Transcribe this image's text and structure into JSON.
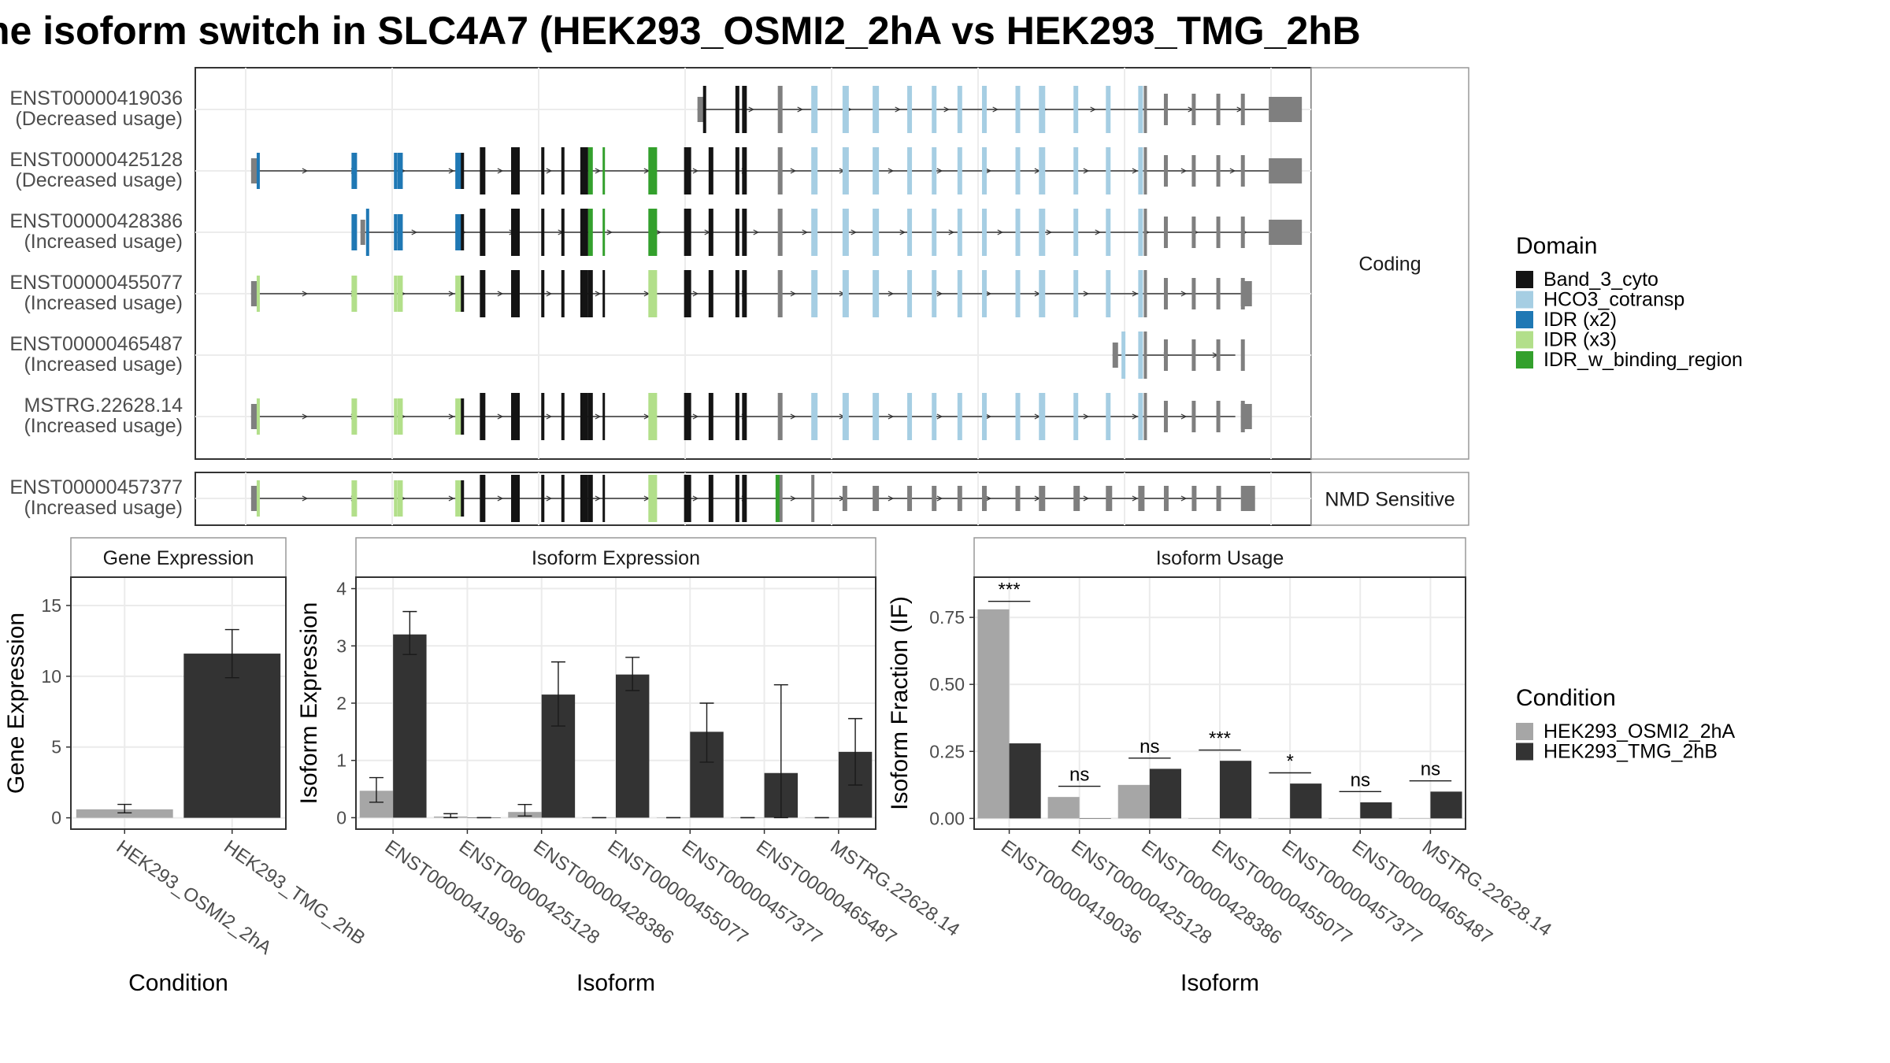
{
  "title": "he isoform switch in SLC4A7 (HEK293_OSMI2_2hA vs HEK293_TMG_2hB",
  "colors": {
    "Band_3_cyto": "#141414",
    "HCO3_cotransp": "#a6cee3",
    "IDR (x2)": "#1f78b4",
    "IDR (x3)": "#b2df8a",
    "IDR_w_binding_region": "#33a02c",
    "utr": "#7f7f7f",
    "line": "#333333",
    "cond_a": "#a6a6a6",
    "cond_b": "#333333"
  },
  "legend_domain": {
    "title": "Domain",
    "items": [
      {
        "label": "Band_3_cyto",
        "color": "#141414"
      },
      {
        "label": "HCO3_cotransp",
        "color": "#a6cee3"
      },
      {
        "label": "IDR (x2)",
        "color": "#1f78b4"
      },
      {
        "label": "IDR (x3)",
        "color": "#b2df8a"
      },
      {
        "label": "IDR_w_binding_region",
        "color": "#33a02c"
      }
    ]
  },
  "legend_condition": {
    "title": "Condition",
    "items": [
      {
        "label": "HEK293_OSMI2_2hA",
        "color": "#a6a6a6"
      },
      {
        "label": "HEK293_TMG_2hB",
        "color": "#333333"
      }
    ]
  },
  "structure": {
    "panels": [
      {
        "strip": "Coding",
        "transcripts": [
          {
            "id": "ENST00000419036",
            "usage": "(Decreased usage)",
            "start": 0.45,
            "end": 0.962
          },
          {
            "id": "ENST00000425128",
            "usage": "(Decreased usage)",
            "start": 0.05,
            "end": 0.962
          },
          {
            "id": "ENST00000428386",
            "usage": "(Increased usage)",
            "start": 0.148,
            "end": 0.962
          },
          {
            "id": "ENST00000455077",
            "usage": "(Increased usage)",
            "start": 0.05,
            "end": 0.937
          },
          {
            "id": "ENST00000465487",
            "usage": "(Increased usage)",
            "start": 0.822,
            "end": 0.932
          },
          {
            "id": "MSTRG.22628.14",
            "usage": "(Increased usage)",
            "start": 0.05,
            "end": 0.932
          }
        ]
      },
      {
        "strip": "NMD Sensitive",
        "transcripts": [
          {
            "id": "ENST00000457377",
            "usage": "(Increased usage)",
            "start": 0.05,
            "end": 0.937
          }
        ]
      }
    ]
  },
  "chart_data": [
    {
      "type": "bar",
      "title": "Gene Expression",
      "xlabel": "Condition",
      "ylabel": "Gene Expression",
      "ylim": [
        -0.8,
        17
      ],
      "yticks": [
        0,
        5,
        10,
        15
      ],
      "categories": [
        "HEK293_OSMI2_2hA",
        "HEK293_TMG_2hB"
      ],
      "values": [
        0.6,
        11.6
      ],
      "error": [
        [
          0.35,
          0.95
        ],
        [
          9.9,
          13.3
        ]
      ]
    },
    {
      "type": "bar",
      "title": "Isoform Expression",
      "xlabel": "Isoform",
      "ylabel": "Isoform Expression",
      "ylim": [
        -0.2,
        4.2
      ],
      "yticks": [
        0,
        1,
        2,
        3,
        4
      ],
      "categories": [
        "ENST00000419036",
        "ENST00000425128",
        "ENST00000428386",
        "ENST00000455077",
        "ENST00000457377",
        "ENST00000465487",
        "MSTRG.22628.14"
      ],
      "series": [
        {
          "name": "HEK293_OSMI2_2hA",
          "values": [
            0.47,
            0.02,
            0.1,
            0.0,
            0.0,
            0.0,
            0.0
          ],
          "error": [
            [
              0.27,
              0.7
            ],
            [
              0.0,
              0.07
            ],
            [
              0.03,
              0.23
            ],
            [
              0,
              0
            ],
            [
              0,
              0
            ],
            [
              0,
              0
            ],
            [
              0,
              0
            ]
          ]
        },
        {
          "name": "HEK293_TMG_2hB",
          "values": [
            3.2,
            0.0,
            2.15,
            2.5,
            1.5,
            0.78,
            1.15
          ],
          "error": [
            [
              2.85,
              3.6
            ],
            [
              0,
              0
            ],
            [
              1.6,
              2.72
            ],
            [
              2.22,
              2.8
            ],
            [
              0.97,
              2.0
            ],
            [
              0.0,
              2.32
            ],
            [
              0.57,
              1.73
            ]
          ]
        }
      ]
    },
    {
      "type": "bar",
      "title": "Isoform Usage",
      "xlabel": "Isoform",
      "ylabel": "Isoform Fraction (IF)",
      "ylim": [
        -0.04,
        0.9
      ],
      "yticks": [
        0.0,
        0.25,
        0.5,
        0.75
      ],
      "ytick_labels": [
        "0.00",
        "0.25",
        "0.50",
        "0.75"
      ],
      "categories": [
        "ENST00000419036",
        "ENST00000425128",
        "ENST00000428386",
        "ENST00000455077",
        "ENST00000457377",
        "ENST00000465487",
        "MSTRG.22628.14"
      ],
      "series": [
        {
          "name": "HEK293_OSMI2_2hA",
          "values": [
            0.78,
            0.08,
            0.125,
            0.0,
            0.0,
            0.0,
            0.0
          ]
        },
        {
          "name": "HEK293_TMG_2hB",
          "values": [
            0.28,
            0.0,
            0.185,
            0.215,
            0.13,
            0.06,
            0.1
          ]
        }
      ],
      "significance": [
        "***",
        "ns",
        "ns",
        "***",
        "*",
        "ns",
        "ns"
      ],
      "sig_line_y": [
        0.81,
        0.12,
        0.225,
        0.255,
        0.17,
        0.1,
        0.14
      ]
    }
  ]
}
